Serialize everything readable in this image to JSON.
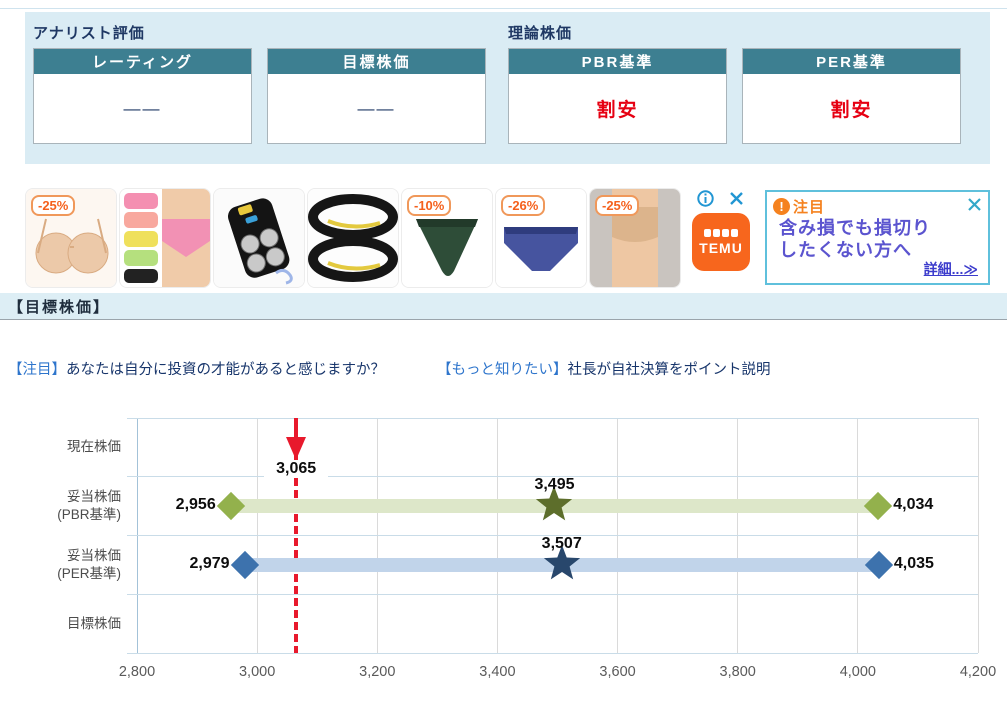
{
  "colors": {
    "panel_bg": "#daecf4",
    "header_teal": "#3d7f91",
    "navy_text": "#1f3864",
    "cheap_red": "#e60012",
    "link_blue": "#2e75cc",
    "link_navy": "#17356b",
    "current_price_red": "#e8192c",
    "pbr_bar": "#dde7c9",
    "pbr_diamond": "#93b14c",
    "pbr_star": "#5d6e2b",
    "per_bar": "#c1d4ea",
    "per_diamond": "#3d72ad",
    "per_star": "#28476c",
    "temu_orange": "#f7661d"
  },
  "analyst": {
    "title": "アナリスト評価",
    "boxes": [
      {
        "header": "レーティング",
        "value": "――"
      },
      {
        "header": "目標株価",
        "value": "――"
      }
    ]
  },
  "theoretical": {
    "title": "理論株価",
    "boxes": [
      {
        "header": "PBR基準",
        "value": "割安"
      },
      {
        "header": "PER基準",
        "value": "割安"
      }
    ]
  },
  "temu_ad": {
    "badges": {
      "bra": "-25%",
      "thong": "-10%",
      "panties_blue": "-26%",
      "bra_model": "-25%"
    },
    "logo": "TEMU"
  },
  "attention_ad": {
    "badge_text": "注目",
    "excl": "!",
    "line1": "含み損でも損切り",
    "line2": "したくない方へ",
    "detail_link": "詳細...≫"
  },
  "section_header": "【目標株価】",
  "promo_links": [
    {
      "prefix": "【注目】",
      "text": "あなたは自分に投資の才能があると感じますか？"
    },
    {
      "prefix": "【もっと知りたい】",
      "text": "社長が自社決算をポイント説明"
    }
  ],
  "chart_data": {
    "type": "range-bar",
    "title": "目標株価チャート",
    "xlim": [
      2800,
      4200
    ],
    "tick_step": 200,
    "x_tick_labels": [
      "2,800",
      "3,000",
      "3,200",
      "3,400",
      "3,600",
      "3,800",
      "4,000",
      "4,200"
    ],
    "grid": true,
    "rows": [
      {
        "kind": "current",
        "label_lines": [
          "現在株価"
        ],
        "value": 3065,
        "value_label": "3,065",
        "line_color": "#e8192c"
      },
      {
        "kind": "range",
        "label_lines": [
          "妥当株価",
          "(PBR基準)"
        ],
        "min": 2956,
        "mid": 3495,
        "max": 4034,
        "min_label": "2,956",
        "mid_label": "3,495",
        "max_label": "4,034",
        "bar_color": "#dde7c9",
        "diamond_color": "#93b14c",
        "star_color": "#5d6e2b"
      },
      {
        "kind": "range",
        "label_lines": [
          "妥当株価",
          "(PER基準)"
        ],
        "min": 2979,
        "mid": 3507,
        "max": 4035,
        "min_label": "2,979",
        "mid_label": "3,507",
        "max_label": "4,035",
        "bar_color": "#c1d4ea",
        "diamond_color": "#3d72ad",
        "star_color": "#28476c"
      },
      {
        "kind": "empty",
        "label_lines": [
          "目標株価"
        ]
      }
    ]
  }
}
